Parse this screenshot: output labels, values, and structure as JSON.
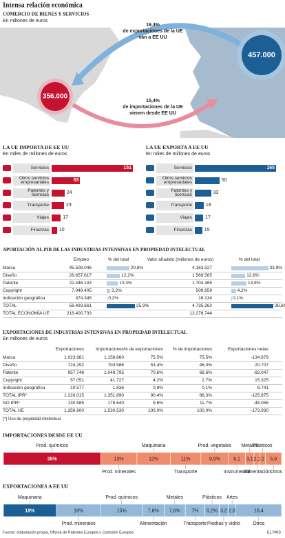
{
  "title": "Intensa relación económica",
  "map": {
    "heading": "COMERCIO DE BIENES Y SERVICIOS",
    "subtitle": "En millones de euros",
    "export_note": [
      "19,4%",
      "de exportaciones de la UE",
      "van a EE UU"
    ],
    "import_note": [
      "15,4%",
      "de importaciones de la UE",
      "vienen desde EE UU"
    ],
    "eu_total": "457.000",
    "us_total": "356.000"
  },
  "chart_data": [
    {
      "type": "hbar",
      "title": "LA UE IMPORTA DE EE UU",
      "subtitle": "En miles de millones de euros",
      "categories": [
        "Servicios",
        "Otros servicios empresariales",
        "Patentes y licencias",
        "Transporte",
        "Viajes",
        "Finanzas"
      ],
      "values": [
        151,
        53,
        24,
        23,
        17,
        10
      ],
      "color": "#c4122f"
    },
    {
      "type": "hbar",
      "title": "LA UE EXPORTA A EE UU",
      "subtitle": "En miles de millones de euros",
      "categories": [
        "Servicios",
        "Otros servicios empresariales",
        "Patentes y licencias",
        "Transporte",
        "Viajes",
        "Finanzas"
      ],
      "values": [
        165,
        50,
        33,
        18,
        17,
        15
      ],
      "color": "#1c5f95"
    },
    {
      "type": "stacked100",
      "title": "IMPORTACIONES DESDE EE UU",
      "categories": [
        "Prod. químicos",
        "Prod. minerales",
        "Maquinaria",
        "Transporte",
        "Prod. vegetales",
        "Instrumental",
        "Metales",
        "Alimentación",
        "Plásticos",
        "Otros"
      ],
      "values": [
        35,
        13,
        12,
        11,
        9.9,
        6.1,
        3.1,
        2.1,
        2,
        5.8
      ],
      "value_labels": [
        "35%",
        "13%",
        "12%",
        "11%",
        "9,9%",
        "6,1",
        "3,1",
        "2,1",
        "2",
        "5,8"
      ],
      "colors": [
        "#c4122f",
        "#f08c6e",
        "#f08c6e",
        "#f08c6e",
        "#f08c6e",
        "#f08c6e",
        "#f08c6e",
        "#f08c6e",
        "#f08c6e",
        "#f08c6e"
      ]
    },
    {
      "type": "stacked100",
      "title": "EXPORTACIONES A EE UU",
      "categories": [
        "Maquinaria",
        "Prod. minerales",
        "Prod. químicos",
        "Alimentación",
        "Metales",
        "Transporte",
        "Plásticos",
        "Piedras y vidrio",
        "Artes",
        "Otros"
      ],
      "values": [
        19,
        16,
        15,
        7.8,
        7.6,
        7,
        5.2,
        3.2,
        2.8,
        16.4
      ],
      "value_labels": [
        "19%",
        "16%",
        "15%",
        "7,8%",
        "7,6%",
        "7%",
        "5,2%",
        "3,2",
        "2,8",
        "16,4"
      ],
      "colors": [
        "#1c5f95",
        "#93b8d9",
        "#93b8d9",
        "#93b8d9",
        "#93b8d9",
        "#93b8d9",
        "#93b8d9",
        "#93b8d9",
        "#93b8d9",
        "#93b8d9"
      ]
    }
  ],
  "table_1": {
    "title": "APORTACIÓN AL PIB DE LAS INDUSTRIAS INTENSIVAS EN PROPIEDAD INTELECTUAL",
    "columns": [
      "Empleo",
      "% del total",
      "Valor añadido (millones de euros)",
      "% del total"
    ],
    "bar_color": "#b9cfe4",
    "highlight_color": "#1c5f95",
    "highlight_row": 5,
    "rows": [
      [
        "Marca",
        "45.508.046",
        {
          "value": 20.8,
          "label": "20,8%"
        },
        "4.163.527",
        {
          "value": 33.9,
          "label": "33,9%"
        }
      ],
      [
        "Diseño",
        "26.657.617",
        {
          "value": 12.2,
          "label": "12,2%"
        },
        "1.569.565",
        {
          "value": 12.8,
          "label": "12,8%"
        }
      ],
      [
        "Patente",
        "22.446.133",
        {
          "value": 10.3,
          "label": "10,3%"
        },
        "1.704.485",
        {
          "value": 13.9,
          "label": "13,9%"
        }
      ],
      [
        "Copyright",
        "7.049.405",
        {
          "value": 3.2,
          "label": "3,2%"
        },
        "509.859",
        {
          "value": 4.2,
          "label": "4,2%"
        }
      ],
      [
        "Indicación geográfica",
        "374.345",
        {
          "value": 0.2,
          "label": "0,2%"
        },
        "16.134",
        {
          "value": 0.1,
          "label": "0,1%"
        }
      ],
      [
        "TOTAL",
        "56.493.661",
        {
          "value": 25.9,
          "label": "25,9%"
        },
        "4.735.262",
        {
          "value": 38.6,
          "label": "38,6%"
        }
      ],
      [
        "TOTAL  ECONOMÍA UE",
        "218.400.733",
        null,
        "12.278.744",
        null
      ]
    ]
  },
  "table_2": {
    "title": "EXPORTACIONES DE INDUSTRIAS INTENSIVAS EN PROPIEDAD INTELECTUAL",
    "subtitle": "En millones de euros",
    "columns": [
      "Exportaciones",
      "Importaciones",
      "% de exportaciones",
      "% de importaciones",
      "Exportaciones netas"
    ],
    "rows": [
      [
        "Marca",
        "1.023.981",
        "1.158.860",
        "75,5%",
        "75,5%",
        "-134.879"
      ],
      [
        "Diseño",
        "724.292",
        "703.586",
        "53,4%",
        "46,0%",
        "20.707"
      ],
      [
        "Patente",
        "957.748",
        "1.049.795",
        "70,6%",
        "68,6%",
        "-92.047"
      ],
      [
        "Copyright",
        "57.051",
        "41.727",
        "4,2%",
        "2,7%",
        "15.325"
      ],
      [
        "Indicación geográfica",
        "10.577",
        "1.836",
        "0,8%",
        "0,1%",
        "8.741"
      ],
      [
        "TOTAL IPR*",
        "1.226.015",
        "1.351.890",
        "90,4%",
        "88,3%",
        "-125.875"
      ],
      [
        "NO IPR*",
        "130.585",
        "178.640",
        "9,6%",
        "11,7%",
        "-48.055"
      ],
      [
        "TOTAL UE",
        "1.356.600",
        "1.530.530",
        "100,0%",
        "100,0%",
        "-173.930"
      ]
    ],
    "footnote": "(*) Uso de propiedad intelectual"
  },
  "source": "Fuente: elaboración propia, Oficina de Patentes Europea y Comisión Europea",
  "publisher": "EL PAÍS"
}
